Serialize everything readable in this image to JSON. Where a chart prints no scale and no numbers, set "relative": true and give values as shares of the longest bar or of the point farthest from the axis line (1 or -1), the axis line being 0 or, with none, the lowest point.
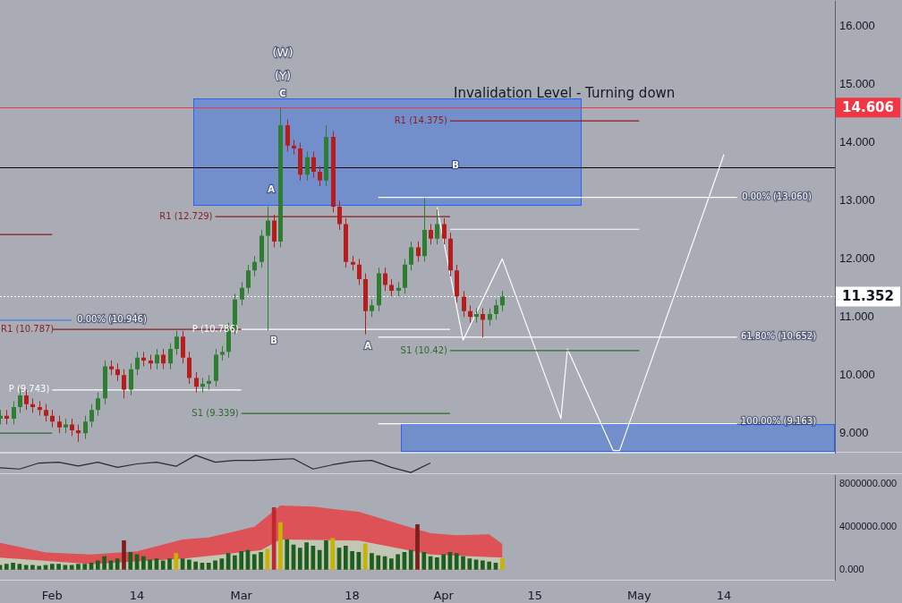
{
  "chart_data": [
    {
      "type": "candlestick",
      "title": "Invalidation Level - Turning down",
      "tick_labels": "y",
      "xlim": [
        "--01-24",
        "--05-31"
      ],
      "ylim": [
        8.66,
        16.43
      ],
      "yticks": [
        {
          "value": 9,
          "label": "9.000"
        },
        {
          "value": 10,
          "label": "10.000"
        },
        {
          "value": 11,
          "label": "11.000"
        },
        {
          "value": 12,
          "label": "12.000"
        },
        {
          "value": 13,
          "label": "13.000"
        },
        {
          "value": 14,
          "label": "14.000"
        },
        {
          "value": 15,
          "label": "15.000"
        },
        {
          "value": 16,
          "label": "16.000"
        }
      ],
      "x": [
        "--01-24",
        "--01-25",
        "--01-26",
        "--01-27",
        "--01-28",
        "--01-29",
        "--01-30",
        "--01-31",
        "--02-01",
        "--02-02",
        "--02-03",
        "--02-04",
        "--02-05",
        "--02-06",
        "--02-07",
        "--02-08",
        "--02-09",
        "--02-10",
        "--02-11",
        "--02-12",
        "--02-13",
        "--02-14",
        "--02-15",
        "--02-16",
        "--02-17",
        "--02-18",
        "--02-19",
        "--02-20",
        "--02-21",
        "--02-22",
        "--02-23",
        "--02-24",
        "--02-25",
        "--02-26",
        "--02-27",
        "--02-28",
        "--02-29",
        "--03-01",
        "--03-02",
        "--03-03",
        "--03-04",
        "--03-05",
        "--03-06",
        "--03-07",
        "--03-08",
        "--03-09",
        "--03-10",
        "--03-11",
        "--03-12",
        "--03-13",
        "--03-14",
        "--03-15",
        "--03-16",
        "--03-17",
        "--03-18",
        "--03-19",
        "--03-20",
        "--03-21",
        "--03-22",
        "--03-23",
        "--03-24",
        "--03-25",
        "--03-26",
        "--03-27",
        "--03-28",
        "--03-29",
        "--03-30",
        "--03-31",
        "--04-01",
        "--04-02",
        "--04-03",
        "--04-04",
        "--04-05",
        "--04-06",
        "--04-07",
        "--04-08",
        "--04-09",
        "--04-10"
      ],
      "ohlc": [
        [
          9.25,
          9.4,
          9.15,
          9.3
        ],
        [
          9.3,
          9.4,
          9.15,
          9.25
        ],
        [
          9.25,
          9.55,
          9.15,
          9.45
        ],
        [
          9.45,
          9.75,
          9.35,
          9.65
        ],
        [
          9.65,
          9.75,
          9.4,
          9.5
        ],
        [
          9.5,
          9.6,
          9.35,
          9.45
        ],
        [
          9.45,
          9.55,
          9.3,
          9.4
        ],
        [
          9.4,
          9.5,
          9.2,
          9.3
        ],
        [
          9.3,
          9.4,
          9.1,
          9.2
        ],
        [
          9.2,
          9.3,
          9.0,
          9.1
        ],
        [
          9.1,
          9.25,
          9.0,
          9.15
        ],
        [
          9.15,
          9.25,
          8.95,
          9.05
        ],
        [
          9.05,
          9.15,
          8.85,
          9.0
        ],
        [
          9.0,
          9.3,
          8.9,
          9.2
        ],
        [
          9.2,
          9.5,
          9.1,
          9.4
        ],
        [
          9.4,
          9.7,
          9.3,
          9.6
        ],
        [
          9.6,
          10.25,
          9.5,
          10.15
        ],
        [
          10.15,
          10.25,
          10.0,
          10.1
        ],
        [
          10.1,
          10.2,
          9.9,
          10.0
        ],
        [
          10.0,
          10.1,
          9.6,
          9.75
        ],
        [
          9.75,
          10.2,
          9.65,
          10.1
        ],
        [
          10.1,
          10.4,
          10.0,
          10.3
        ],
        [
          10.3,
          10.4,
          10.15,
          10.25
        ],
        [
          10.25,
          10.35,
          10.1,
          10.2
        ],
        [
          10.2,
          10.45,
          10.1,
          10.35
        ],
        [
          10.35,
          10.45,
          10.1,
          10.2
        ],
        [
          10.2,
          10.55,
          10.1,
          10.45
        ],
        [
          10.45,
          10.76,
          10.35,
          10.66
        ],
        [
          10.66,
          10.76,
          10.2,
          10.3
        ],
        [
          10.3,
          10.4,
          9.85,
          9.95
        ],
        [
          9.95,
          10.05,
          9.7,
          9.8
        ],
        [
          9.8,
          9.95,
          9.7,
          9.85
        ],
        [
          9.85,
          10.0,
          9.75,
          9.9
        ],
        [
          9.9,
          10.45,
          9.8,
          10.35
        ],
        [
          10.35,
          10.5,
          10.25,
          10.4
        ],
        [
          10.4,
          10.9,
          10.3,
          10.8
        ],
        [
          10.8,
          11.4,
          10.7,
          11.3
        ],
        [
          11.3,
          11.6,
          11.2,
          11.5
        ],
        [
          11.5,
          11.9,
          11.4,
          11.8
        ],
        [
          11.8,
          12.05,
          11.7,
          11.95
        ],
        [
          11.95,
          12.5,
          11.85,
          12.4
        ],
        [
          12.4,
          12.9,
          10.77,
          12.66
        ],
        [
          12.66,
          12.76,
          12.2,
          12.3
        ],
        [
          12.3,
          14.6,
          12.2,
          14.3
        ],
        [
          14.3,
          14.4,
          13.85,
          13.95
        ],
        [
          13.95,
          14.05,
          13.8,
          13.9
        ],
        [
          13.9,
          14.0,
          13.35,
          13.45
        ],
        [
          13.45,
          13.85,
          13.35,
          13.75
        ],
        [
          13.75,
          13.85,
          13.4,
          13.5
        ],
        [
          13.5,
          13.6,
          13.25,
          13.35
        ],
        [
          13.35,
          14.3,
          13.25,
          14.1
        ],
        [
          14.1,
          14.2,
          12.8,
          12.9
        ],
        [
          12.9,
          13.0,
          12.5,
          12.6
        ],
        [
          12.6,
          12.7,
          11.85,
          11.95
        ],
        [
          11.95,
          12.05,
          11.8,
          11.9
        ],
        [
          11.9,
          12.0,
          11.55,
          11.65
        ],
        [
          11.65,
          11.75,
          10.7,
          11.1
        ],
        [
          11.1,
          11.3,
          11.0,
          11.2
        ],
        [
          11.2,
          11.85,
          11.1,
          11.75
        ],
        [
          11.75,
          11.85,
          11.45,
          11.55
        ],
        [
          11.55,
          11.65,
          11.35,
          11.45
        ],
        [
          11.45,
          11.6,
          11.35,
          11.5
        ],
        [
          11.5,
          12.0,
          11.4,
          11.9
        ],
        [
          11.9,
          12.3,
          11.8,
          12.2
        ],
        [
          12.2,
          12.3,
          11.95,
          12.05
        ],
        [
          12.05,
          13.05,
          11.95,
          12.5
        ],
        [
          12.5,
          12.6,
          12.25,
          12.35
        ],
        [
          12.35,
          12.85,
          12.25,
          12.6
        ],
        [
          12.6,
          12.7,
          12.25,
          12.35
        ],
        [
          12.35,
          12.45,
          11.7,
          11.8
        ],
        [
          11.8,
          11.9,
          11.25,
          11.35
        ],
        [
          11.35,
          11.45,
          11.0,
          11.1
        ],
        [
          11.1,
          11.2,
          10.9,
          11.0
        ],
        [
          11.0,
          11.15,
          10.9,
          11.05
        ],
        [
          11.05,
          11.15,
          10.65,
          10.95
        ],
        [
          10.95,
          11.15,
          10.85,
          11.05
        ],
        [
          11.05,
          11.3,
          10.95,
          11.2
        ],
        [
          11.2,
          11.45,
          11.1,
          11.352
        ]
      ],
      "series": [
        {
          "type": "line",
          "name": "R1 (14.375)",
          "color": "#8b1e1e",
          "x": [
            "--04-02",
            "--05-01"
          ],
          "values": [
            14.375,
            14.375
          ]
        },
        {
          "type": "line",
          "color": "#ffffff",
          "x": [
            "--04-02",
            "--05-01"
          ],
          "values": [
            12.51,
            12.51
          ]
        },
        {
          "type": "line",
          "name": "R1 (12.729)",
          "color": "#8b1e1e",
          "x": [
            "--02-26",
            "--04-02"
          ],
          "values": [
            12.729,
            12.729
          ]
        },
        {
          "type": "line",
          "name": "P (10.786)",
          "color": "#ffffff",
          "x": [
            "--03-01",
            "--04-02"
          ],
          "values": [
            10.786,
            10.786
          ]
        },
        {
          "type": "line",
          "name": "R1 (10.787)",
          "color": "#8b1e1e",
          "x": [
            "--02-01",
            "--03-01"
          ],
          "values": [
            10.787,
            10.787
          ]
        },
        {
          "type": "line",
          "name": "P (9.743)",
          "color": "#ffffff",
          "x": [
            "--02-01",
            "--03-01"
          ],
          "values": [
            9.743,
            9.743
          ]
        },
        {
          "type": "line",
          "name": "S1 (9.339)",
          "color": "#2e6b2e",
          "x": [
            "--03-01",
            "--04-02"
          ],
          "values": [
            9.339,
            9.339
          ]
        },
        {
          "type": "line",
          "name": "S1 (10.42)",
          "color": "#2e6b2e",
          "x": [
            "--04-02",
            "--05-01"
          ],
          "values": [
            10.42,
            10.42
          ]
        },
        {
          "type": "line",
          "color": "#8b1e1e",
          "x": [
            "--01-24",
            "--02-01"
          ],
          "values": [
            12.42,
            12.42
          ]
        },
        {
          "type": "line",
          "color": "#2e6b2e",
          "x": [
            "--01-24",
            "--02-01"
          ],
          "values": [
            9.0,
            9.0
          ]
        },
        {
          "type": "line",
          "color": "#4a7fe0",
          "x": [
            "--01-24",
            "--02-04"
          ],
          "values": [
            10.946,
            10.946
          ]
        },
        {
          "type": "line",
          "color": "#ffffff",
          "x": [
            "--03-22",
            "--05-16"
          ],
          "values": [
            13.06,
            13.06
          ]
        },
        {
          "type": "line",
          "color": "#ffffff",
          "x": [
            "--03-22",
            "--05-16"
          ],
          "values": [
            10.652,
            10.652
          ]
        },
        {
          "type": "line",
          "color": "#ffffff",
          "x": [
            "--03-22",
            "--05-16"
          ],
          "values": [
            9.163,
            9.163
          ]
        },
        {
          "type": "line",
          "color": "#ffffff",
          "x": [
            "--03-31",
            "--04-04",
            "--04-10",
            "--04-19",
            "--04-20",
            "--04-27",
            "--04-28",
            "--05-14"
          ],
          "values": [
            12.89,
            10.6,
            12.0,
            9.25,
            10.45,
            8.7,
            8.7,
            13.8
          ]
        }
      ],
      "ref_lines": [
        {
          "axis": "y",
          "value": 14.606,
          "label": "14.606",
          "color": "#f23645"
        },
        {
          "axis": "y",
          "value": 13.57,
          "color": "#000000"
        },
        {
          "axis": "y",
          "value": 11.352,
          "label": "11.352",
          "color": "#ffffff",
          "line_style": "dotted"
        }
      ],
      "annotations": [
        "(W)",
        "(Y)",
        "C",
        "A",
        "B",
        "B",
        "A",
        "0.00% (10.946)",
        "0.00% (13.060)",
        "61.80% (10.652)",
        "100.00% (9.163)"
      ]
    },
    {
      "type": "line",
      "relative": true,
      "tick_labels": false,
      "categories": [
        null,
        null,
        null,
        null,
        null,
        null,
        null,
        null,
        null,
        null,
        null,
        null,
        null,
        null,
        null,
        null,
        null,
        null,
        null,
        null,
        null,
        null,
        null
      ],
      "series": [
        {
          "color": "#2b2b2b",
          "values": [
            0.27,
            0.2,
            0.55,
            0.6,
            0.38,
            0.6,
            0.3,
            0.5,
            0.6,
            0.36,
            1,
            0.6,
            0.7,
            0.7,
            0.75,
            0.8,
            0.2,
            0.45,
            0.64,
            0.7,
            0.3,
            0,
            0.55
          ]
        }
      ]
    },
    {
      "type": "bar",
      "xlim": [
        "--01-24",
        "--05-31"
      ],
      "xticks": [
        {
          "value": "--02-01",
          "label": "Feb"
        },
        {
          "value": "--02-14",
          "label": "14"
        },
        {
          "value": "--03-01",
          "label": "Mar"
        },
        {
          "value": "--03-18",
          "label": "18"
        },
        {
          "value": "--04-01",
          "label": "Apr"
        },
        {
          "value": "--04-15",
          "label": "15"
        },
        {
          "value": "--05-01",
          "label": "May"
        },
        {
          "value": "--05-14",
          "label": "14"
        }
      ],
      "ylim": [
        -1000000,
        8800000
      ],
      "yticks": [
        {
          "value": 0,
          "label": "0.000"
        },
        {
          "value": 4000000,
          "label": "4000000.000"
        },
        {
          "value": 8000000,
          "label": "8000000.000"
        }
      ],
      "series": [
        {
          "type": "area",
          "color": "#dc5257",
          "x": [
            "--01-24",
            "--01-31",
            "--02-07",
            "--02-14",
            "--02-21",
            "--02-25",
            "--03-03",
            "--03-07",
            "--03-12",
            "--03-16",
            "--03-19",
            "--03-26",
            "--03-30",
            "--04-03",
            "--04-08",
            "--04-10"
          ],
          "values": [
            2500000,
            1600000,
            1400000,
            1700000,
            2800000,
            3000000,
            4000000,
            6000000,
            5900000,
            5600000,
            5400000,
            4100000,
            3400000,
            3200000,
            3300000,
            2400000
          ]
        },
        {
          "type": "area",
          "color": "#c3c6b4",
          "x": [
            "--01-24",
            "--02-07",
            "--02-21",
            "--03-04",
            "--03-07",
            "--03-19",
            "--03-30",
            "--04-10"
          ],
          "values": [
            1100000,
            500000,
            1000000,
            1800000,
            2800000,
            2700000,
            1400000,
            1100000
          ]
        },
        {
          "type": "bar",
          "x": [
            "--01-24",
            "--01-25",
            "--01-26",
            "--01-27",
            "--01-28",
            "--01-29",
            "--01-30",
            "--01-31",
            "--02-01",
            "--02-02",
            "--02-03",
            "--02-04",
            "--02-05",
            "--02-06",
            "--02-07",
            "--02-08",
            "--02-09",
            "--02-10",
            "--02-11",
            "--02-12",
            "--02-13",
            "--02-14",
            "--02-15",
            "--02-16",
            "--02-17",
            "--02-18",
            "--02-19",
            "--02-20",
            "--02-21",
            "--02-22",
            "--02-23",
            "--02-24",
            "--02-25",
            "--02-26",
            "--02-27",
            "--02-28",
            "--02-29",
            "--03-01",
            "--03-02",
            "--03-03",
            "--03-04",
            "--03-05",
            "--03-06",
            "--03-07",
            "--03-08",
            "--03-09",
            "--03-10",
            "--03-11",
            "--03-12",
            "--03-13",
            "--03-14",
            "--03-15",
            "--03-16",
            "--03-17",
            "--03-18",
            "--03-19",
            "--03-20",
            "--03-21",
            "--03-22",
            "--03-23",
            "--03-24",
            "--03-25",
            "--03-26",
            "--03-27",
            "--03-28",
            "--03-29",
            "--03-30",
            "--03-31",
            "--04-01",
            "--04-02",
            "--04-03",
            "--04-04",
            "--04-05",
            "--04-06",
            "--04-07",
            "--04-08",
            "--04-09",
            "--04-10"
          ],
          "values": [
            400000,
            500000,
            600000,
            500000,
            400000,
            400000,
            300000,
            400000,
            500000,
            500000,
            400000,
            400000,
            500000,
            500000,
            600000,
            800000,
            1200000,
            800000,
            1000000,
            2700000,
            1600000,
            1400000,
            1200000,
            900000,
            1000000,
            800000,
            1000000,
            1500000,
            1000000,
            900000,
            700000,
            600000,
            600000,
            800000,
            1000000,
            1500000,
            1300000,
            1700000,
            1800000,
            1400000,
            1600000,
            1900000,
            5800000,
            4400000,
            2800000,
            2300000,
            2000000,
            2500000,
            2200000,
            1800000,
            2700000,
            2900000,
            2000000,
            2200000,
            1700000,
            1600000,
            2400000,
            1500000,
            1300000,
            1200000,
            1000000,
            1400000,
            1600000,
            1800000,
            4200000,
            1600000,
            1200000,
            1100000,
            1400000,
            1600000,
            1500000,
            1200000,
            1000000,
            900000,
            800000,
            700000,
            600000,
            1000000
          ],
          "colors": [
            "#1b5e20",
            "#1b5e20",
            "#1b5e20",
            "#1b5e20",
            "#1b5e20",
            "#1b5e20",
            "#1b5e20",
            "#1b5e20",
            "#1b5e20",
            "#1b5e20",
            "#1b5e20",
            "#1b5e20",
            "#1b5e20",
            "#1b5e20",
            "#1b5e20",
            "#1b5e20",
            "#1b5e20",
            "#1b5e20",
            "#1b5e20",
            "#7b1f1f",
            "#1b5e20",
            "#1b5e20",
            "#1b5e20",
            "#1b5e20",
            "#1b5e20",
            "#1b5e20",
            "#1b5e20",
            "#c8b400",
            "#1b5e20",
            "#1b5e20",
            "#1b5e20",
            "#1b5e20",
            "#1b5e20",
            "#1b5e20",
            "#1b5e20",
            "#1b5e20",
            "#1b5e20",
            "#1b5e20",
            "#1b5e20",
            "#1b5e20",
            "#1b5e20",
            "#c8b400",
            "#c0282d",
            "#c8b400",
            "#1b5e20",
            "#1b5e20",
            "#1b5e20",
            "#1b5e20",
            "#1b5e20",
            "#1b5e20",
            "#1b5e20",
            "#c8b400",
            "#1b5e20",
            "#1b5e20",
            "#1b5e20",
            "#1b5e20",
            "#c8b400",
            "#1b5e20",
            "#1b5e20",
            "#1b5e20",
            "#1b5e20",
            "#1b5e20",
            "#1b5e20",
            "#1b5e20",
            "#7b1f1f",
            "#1b5e20",
            "#1b5e20",
            "#1b5e20",
            "#1b5e20",
            "#1b5e20",
            "#1b5e20",
            "#1b5e20",
            "#1b5e20",
            "#1b5e20",
            "#1b5e20",
            "#1b5e20",
            "#1b5e20",
            "#c8b400"
          ]
        }
      ]
    }
  ]
}
